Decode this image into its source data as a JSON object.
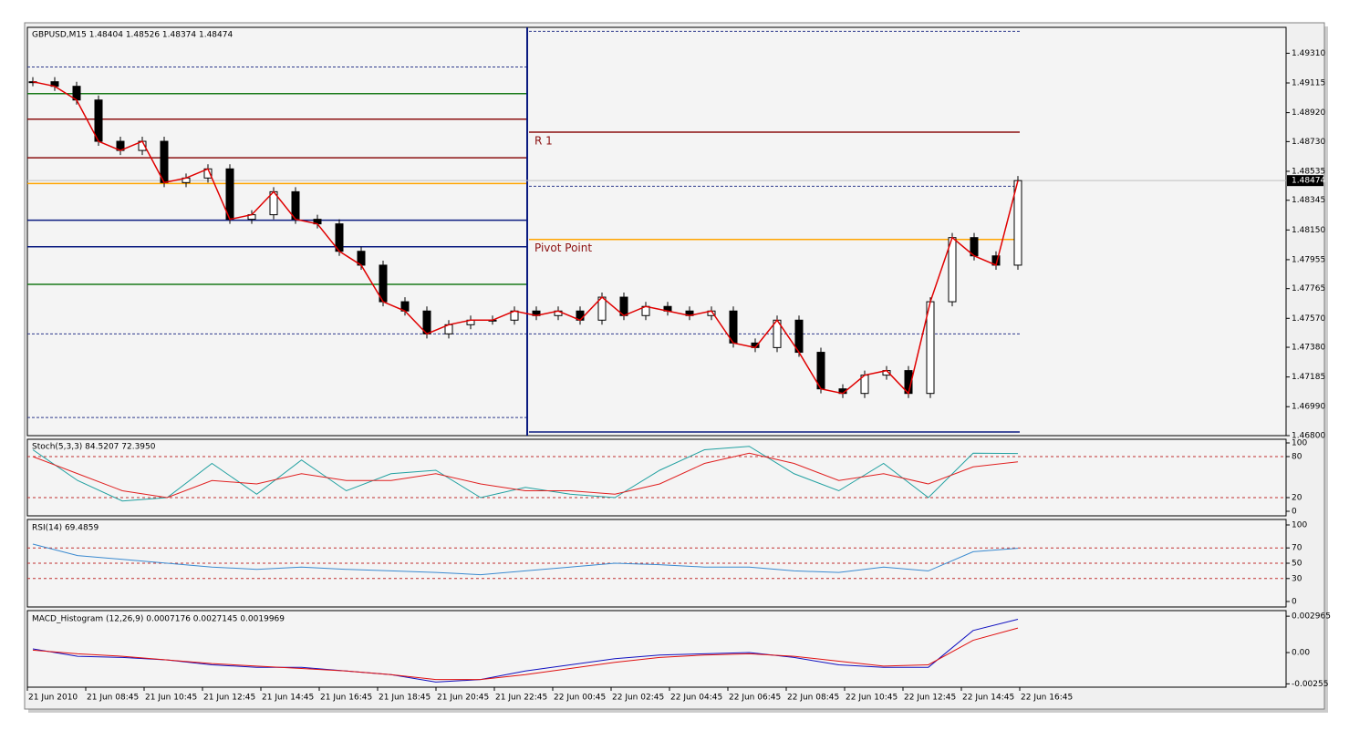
{
  "main": {
    "header": "GBPUSD,M15  1.48404 1.48526 1.48374 1.48474",
    "ylim": [
      1.468,
      1.4948
    ],
    "yticks": [
      {
        "value": 1.4931,
        "label": "1.49310"
      },
      {
        "value": 1.49115,
        "label": "1.49115"
      },
      {
        "value": 1.4892,
        "label": "1.48920"
      },
      {
        "value": 1.4873,
        "label": "1.48730"
      },
      {
        "value": 1.48535,
        "label": "1.48535"
      },
      {
        "value": 1.48345,
        "label": "1.48345"
      },
      {
        "value": 1.4815,
        "label": "1.48150"
      },
      {
        "value": 1.47955,
        "label": "1.47955"
      },
      {
        "value": 1.47765,
        "label": "1.47765"
      },
      {
        "value": 1.4757,
        "label": "1.47570"
      },
      {
        "value": 1.4738,
        "label": "1.47380"
      },
      {
        "value": 1.47185,
        "label": "1.47185"
      },
      {
        "value": 1.4699,
        "label": "1.46990"
      },
      {
        "value": 1.468,
        "label": "1.46800"
      }
    ],
    "current": {
      "value": 1.48474,
      "label": "1.48474"
    },
    "close": [
      1.49123,
      1.49093,
      1.49003,
      1.48732,
      1.48672,
      1.48732,
      1.48461,
      1.48491,
      1.48551,
      1.4822,
      1.4825,
      1.48401,
      1.4822,
      1.4819,
      1.4801,
      1.47919,
      1.47679,
      1.47618,
      1.47468,
      1.47528,
      1.47558,
      1.47558,
      1.47618,
      1.47588,
      1.47618,
      1.47558,
      1.47709,
      1.47588,
      1.47648,
      1.47618,
      1.47588,
      1.47618,
      1.47408,
      1.47378,
      1.47558,
      1.47347,
      1.47107,
      1.47077,
      1.47197,
      1.47227,
      1.47077,
      1.47679,
      1.481,
      1.4798,
      1.47919,
      1.48474
    ],
    "left_levels": [
      {
        "value": 1.4922,
        "color": "#2e3a8c",
        "dash": true
      },
      {
        "value": 1.49045,
        "color": "#1a7a1a",
        "dash": false
      },
      {
        "value": 1.48877,
        "color": "#8b1010",
        "dash": false
      },
      {
        "value": 1.48624,
        "color": "#8b1010",
        "dash": false
      },
      {
        "value": 1.48455,
        "color": "#ffa500",
        "dash": false
      },
      {
        "value": 1.48214,
        "color": "#0a1a80",
        "dash": false
      },
      {
        "value": 1.4804,
        "color": "#0a1a80",
        "dash": false
      },
      {
        "value": 1.47793,
        "color": "#1a7a1a",
        "dash": false
      },
      {
        "value": 1.47468,
        "color": "#2e3a8c",
        "dash": true
      },
      {
        "value": 1.46919,
        "color": "#2e3a8c",
        "dash": true
      }
    ],
    "right_levels": [
      {
        "value": 1.49454,
        "color": "#2e3a8c",
        "dash": true
      },
      {
        "value": 1.48792,
        "color": "#8b1010",
        "dash": false,
        "label": "R 1"
      },
      {
        "value": 1.48437,
        "color": "#2e3a8c",
        "dash": true
      },
      {
        "value": 1.48088,
        "color": "#ffa500",
        "dash": false,
        "label": "Pivot Point"
      },
      {
        "value": 1.47468,
        "color": "#2e3a8c",
        "dash": true
      },
      {
        "value": 1.46824,
        "color": "#0a1a80",
        "dash": false
      }
    ]
  },
  "stoch": {
    "header": "Stoch(5,3,3) 84.5207 72.3950",
    "ylim": [
      0,
      100
    ],
    "yticks": [
      100,
      80,
      20,
      0
    ],
    "levels": [
      80,
      20
    ],
    "main": [
      90,
      45,
      15,
      20,
      70,
      25,
      75,
      30,
      55,
      60,
      20,
      35,
      25,
      20,
      60,
      90,
      95,
      55,
      30,
      70,
      20,
      85,
      84.5207
    ],
    "signal": [
      80,
      55,
      30,
      20,
      45,
      40,
      55,
      45,
      45,
      55,
      40,
      30,
      30,
      25,
      40,
      70,
      85,
      70,
      45,
      55,
      40,
      65,
      72.395
    ]
  },
  "rsi": {
    "header": "RSI(14) 69.4859",
    "ylim": [
      0,
      100
    ],
    "yticks": [
      100,
      70,
      50,
      30,
      0
    ],
    "levels": [
      70,
      50,
      30
    ],
    "values": [
      75,
      60,
      55,
      50,
      45,
      42,
      45,
      42,
      40,
      38,
      35,
      40,
      45,
      50,
      48,
      45,
      45,
      40,
      38,
      45,
      40,
      65,
      69.4859
    ]
  },
  "macd": {
    "header": "MACD_Histogram (12,26,9) 0.0007176 0.0027145 0.0019969",
    "ylim": [
      -0.00282,
      0.00342
    ],
    "yticks": [
      0.002965,
      {
        "value": 0,
        "label": "0.00"
      },
      -0.00255
    ],
    "main": [
      0.0003,
      -0.0003,
      -0.0004,
      -0.0006,
      -0.001,
      -0.0012,
      -0.0012,
      -0.0015,
      -0.0018,
      -0.0024,
      -0.0022,
      -0.0015,
      -0.001,
      -0.0005,
      -0.0002,
      -0.0001,
      0,
      -0.0004,
      -0.001,
      -0.0012,
      -0.0012,
      0.0018,
      0.0027145
    ],
    "signal": [
      0.0002,
      -0.0001,
      -0.0003,
      -0.0006,
      -0.0009,
      -0.0011,
      -0.0013,
      -0.0015,
      -0.0018,
      -0.0022,
      -0.0022,
      -0.0018,
      -0.0013,
      -0.0008,
      -0.0004,
      -0.0002,
      -0.0001,
      -0.0003,
      -0.0007,
      -0.0011,
      -0.001,
      0.001,
      0.0019969
    ]
  },
  "time_labels": [
    "21 Jun 2010",
    "21 Jun 08:45",
    "21 Jun 10:45",
    "21 Jun 12:45",
    "21 Jun 14:45",
    "21 Jun 16:45",
    "21 Jun 18:45",
    "21 Jun 20:45",
    "21 Jun 22:45",
    "22 Jun 00:45",
    "22 Jun 02:45",
    "22 Jun 04:45",
    "22 Jun 06:45",
    "22 Jun 08:45",
    "22 Jun 10:45",
    "22 Jun 12:45",
    "22 Jun 14:45",
    "22 Jun 16:45"
  ]
}
